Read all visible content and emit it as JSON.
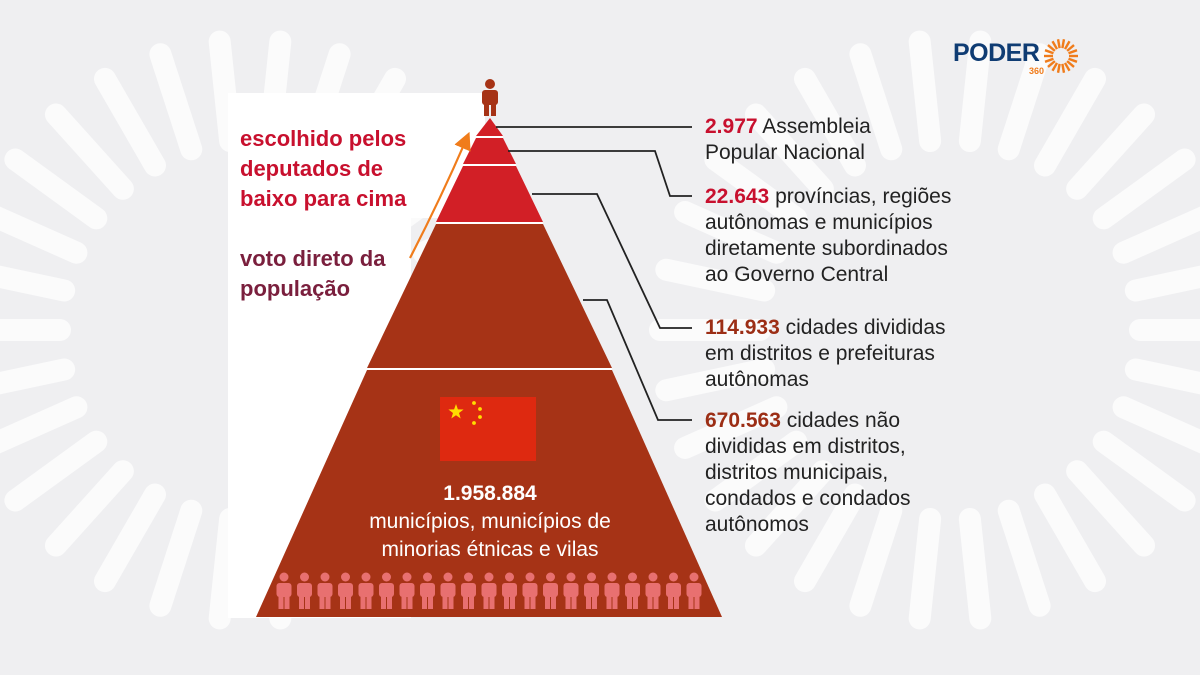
{
  "brand": {
    "name": "PODER",
    "sub": "360",
    "accent_color": "#f07c1b",
    "name_color": "#0f3c73"
  },
  "annotations": {
    "elected": "escolhido pelos deputados de baixo para cima",
    "elected_lines": [
      "escolhido pelos",
      "deputados de",
      "baixo para cima"
    ],
    "direct_vote_lines": [
      "voto direto da",
      "população"
    ]
  },
  "levels": [
    {
      "number": "2.977",
      "lines": [
        "Assembleia",
        "Popular Nacional"
      ],
      "color": "#d21f26"
    },
    {
      "number": "22.643",
      "lines": [
        "províncias, regiões",
        "autônomas e municípios",
        "diretamente subordinados",
        "ao Governo Central"
      ],
      "color": "#d21f26"
    },
    {
      "number": "114.933",
      "lines": [
        "cidades divididas",
        "em distritos e prefeituras",
        "autônomas"
      ],
      "color": "#a63316"
    },
    {
      "number": "670.563",
      "lines": [
        "cidades não",
        "divididas em distritos,",
        "distritos municipais,",
        "condados e condados",
        "autônomos"
      ],
      "color": "#a63316"
    }
  ],
  "base": {
    "number": "1.958.884",
    "lines": [
      "municípios, municípios de",
      "minorias étnicas e vilas"
    ]
  },
  "icons": {
    "top": "person-icon",
    "base": "people-row-icon",
    "flag": "china-flag-icon"
  },
  "colors": {
    "tier_top": "#d21f26",
    "tier_lower": "#a63316",
    "arrow": "#f07c1b",
    "flag_red": "#de2910",
    "flag_star": "#ffde00"
  }
}
